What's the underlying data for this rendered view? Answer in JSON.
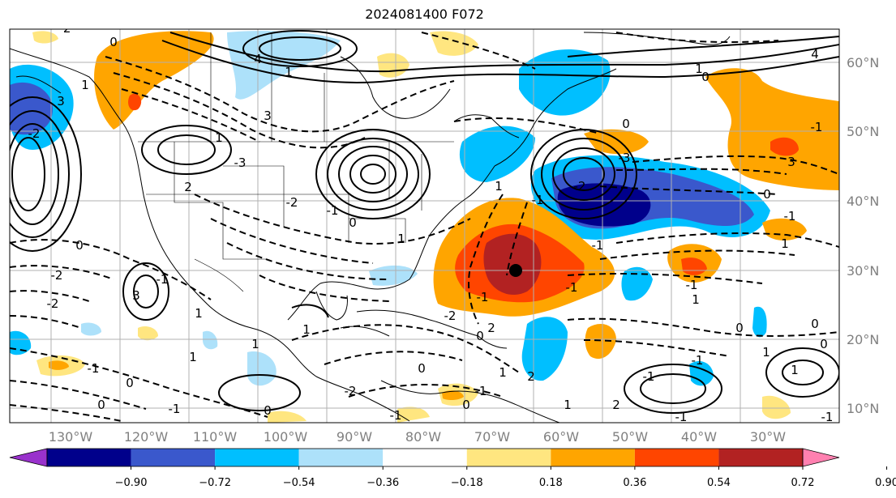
{
  "title": "2024081400 F072",
  "map": {
    "lat_labels": [
      "60°N",
      "50°N",
      "40°N",
      "30°N",
      "20°N",
      "10°N"
    ],
    "lon_labels": [
      "130°W",
      "120°W",
      "110°W",
      "100°W",
      "90°W",
      "80°W",
      "70°W",
      "60°W",
      "50°W",
      "40°W",
      "30°W"
    ],
    "contour_labels": [
      "1",
      "0",
      "-2",
      "-2",
      "-1",
      "4",
      "3",
      "1",
      "3",
      "-1",
      "-1",
      "0",
      "1",
      "4",
      "3",
      "2",
      "1",
      "-3",
      "-2",
      "-1",
      "0",
      "1",
      "1",
      "3",
      "-1",
      "0",
      "-1",
      "1",
      "1",
      "-2",
      "-1",
      "0",
      "0",
      "2",
      "1",
      "-1",
      "-1",
      "-1",
      "1",
      "1",
      "0",
      "-2",
      "0",
      "1",
      "0",
      "-2",
      "-1",
      "-1",
      "-1",
      "0",
      "1",
      "0",
      "0",
      "1",
      "0",
      "-3",
      "-2",
      "-1",
      "-1",
      "1",
      "2",
      "1",
      "2",
      "0",
      "-1",
      "-1",
      "-2",
      "0"
    ]
  },
  "colorbar": {
    "ticks": [
      "−0.90",
      "−0.72",
      "−0.54",
      "−0.36",
      "−0.18",
      "0.18",
      "0.36",
      "0.54",
      "0.72",
      "0.90"
    ],
    "colors": [
      "#9932cc",
      "#00008b",
      "#3a58cc",
      "#00bfff",
      "#ade1fa",
      "#ffffff",
      "#ffe680",
      "#ffa500",
      "#ff4500",
      "#b22222",
      "#ff80b0"
    ]
  }
}
